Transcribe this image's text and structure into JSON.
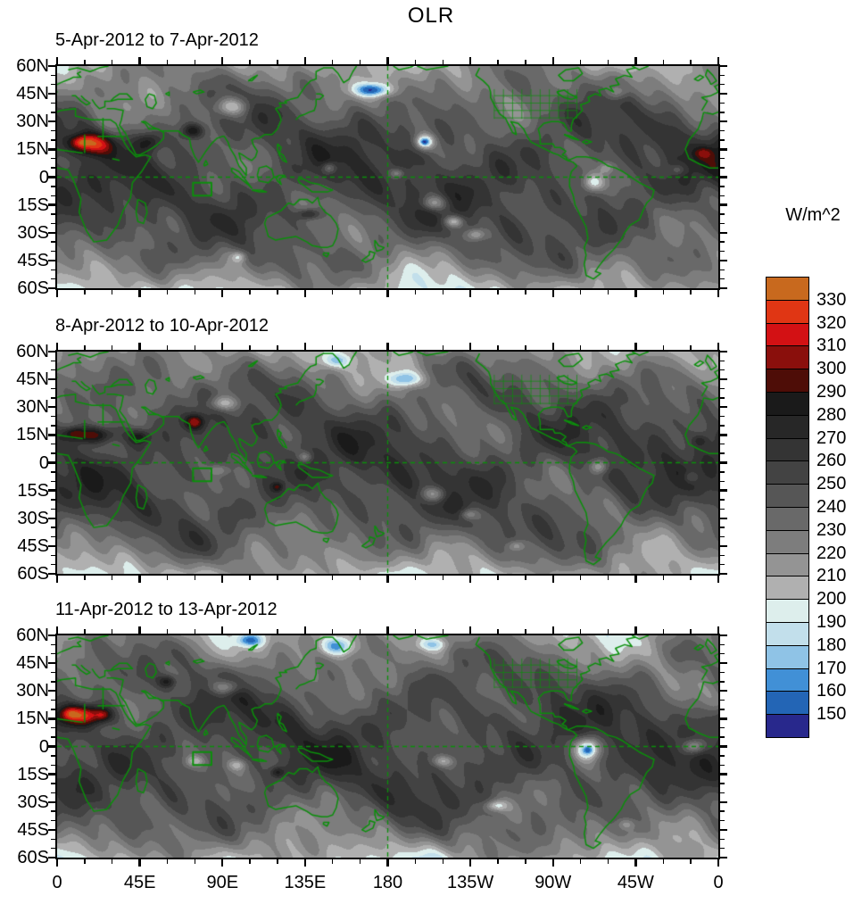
{
  "chart_data": {
    "type": "filled-contour-map",
    "title": "OLR",
    "variable": "Outgoing Longwave Radiation",
    "units": "W/m^2",
    "lon_range_deg_east": [
      0,
      360
    ],
    "lat_range_deg": [
      -60,
      60
    ],
    "grid": "off",
    "axes": {
      "lat_labels": [
        "60N",
        "45N",
        "30N",
        "15N",
        "0",
        "15S",
        "30S",
        "45S",
        "60S"
      ],
      "lat_values": [
        60,
        45,
        30,
        15,
        0,
        -15,
        -30,
        -45,
        -60
      ],
      "lon_labels": [
        "0",
        "45E",
        "90E",
        "135E",
        "180",
        "135W",
        "90W",
        "45W",
        "0"
      ],
      "lon_values": [
        0,
        45,
        90,
        135,
        180,
        225,
        270,
        315,
        360
      ],
      "lat_minor_step_deg": 5,
      "lon_minor_step_deg": 15
    },
    "colorbar": {
      "title": "W/m^2",
      "position": "right",
      "levels": [
        150,
        160,
        170,
        180,
        190,
        200,
        210,
        220,
        230,
        240,
        250,
        260,
        270,
        280,
        290,
        300,
        310,
        320,
        330
      ],
      "labels": [
        "330",
        "320",
        "310",
        "300",
        "290",
        "280",
        "270",
        "260",
        "250",
        "240",
        "230",
        "220",
        "210",
        "200",
        "190",
        "180",
        "170",
        "160",
        "150"
      ],
      "colors_top_to_bottom": [
        "#c8691e",
        "#e03614",
        "#d31114",
        "#8a0f0c",
        "#4e0d07",
        "#1a1a1a",
        "#272727",
        "#343434",
        "#434343",
        "#565656",
        "#696969",
        "#7d7d7d",
        "#949494",
        "#b0b0b0",
        "#ddeeec",
        "#c2dfeb",
        "#8fc3e6",
        "#4190d6",
        "#2365b5",
        "#28288c"
      ]
    },
    "map_overlay": {
      "coastline_color": "#0b8f0b",
      "equator_dashed": true,
      "dateline_dashed": true,
      "region_box_lonlat": [
        74,
        -3,
        84,
        -10
      ]
    },
    "feature_format": [
      "lon_deg_east",
      "lat_deg",
      "amplitude_wm2",
      "radius_lon_deg",
      "radius_lat_deg"
    ],
    "base_field_wm2": 257,
    "panels": [
      {
        "title": "5-Apr-2012 to 7-Apr-2012",
        "seed": 1,
        "features": [
          [
            18,
            18,
            70,
            13,
            6
          ],
          [
            13,
            19,
            28,
            5,
            3
          ],
          [
            50,
            19,
            38,
            7,
            5
          ],
          [
            74,
            25,
            48,
            6,
            4
          ],
          [
            137,
            -20,
            42,
            6,
            3
          ],
          [
            352,
            13,
            25,
            5,
            3
          ],
          [
            95,
            38,
            -50,
            9,
            5
          ],
          [
            172,
            47,
            -65,
            10,
            3.5
          ],
          [
            200,
            19,
            -70,
            5,
            4
          ],
          [
            200,
            19,
            -28,
            2.2,
            1.6
          ],
          [
            148,
            5,
            -40,
            4,
            3
          ],
          [
            185,
            2,
            -32,
            4,
            2.5
          ],
          [
            205,
            -14,
            -45,
            7,
            4
          ],
          [
            216,
            -24,
            -48,
            5,
            3
          ],
          [
            228,
            -31,
            -35,
            5,
            3
          ],
          [
            292,
            -3,
            -52,
            6,
            5
          ],
          [
            299,
            5,
            -28,
            4,
            3
          ],
          [
            99,
            -43,
            -35,
            4,
            3
          ],
          [
            338,
            4,
            -26,
            4,
            3
          ],
          [
            305,
            46,
            -32,
            6,
            4
          ]
        ]
      },
      {
        "title": "8-Apr-2012 to 10-Apr-2012",
        "seed": 2,
        "features": [
          [
            20,
            15,
            65,
            12,
            5
          ],
          [
            9,
            16,
            30,
            5,
            3
          ],
          [
            45,
            14,
            35,
            6,
            4
          ],
          [
            75,
            22,
            52,
            5,
            4
          ],
          [
            350,
            12,
            20,
            4,
            3
          ],
          [
            120,
            -13,
            30,
            3,
            2.5
          ],
          [
            90,
            32,
            -46,
            8,
            4
          ],
          [
            190,
            45,
            -50,
            9,
            4
          ],
          [
            152,
            55,
            -38,
            8,
            4
          ],
          [
            135,
            3,
            -35,
            4,
            3
          ],
          [
            88,
            -4,
            -28,
            5,
            3
          ],
          [
            205,
            -17,
            -45,
            7,
            4
          ],
          [
            224,
            -28,
            -35,
            5,
            3
          ],
          [
            295,
            -2,
            -45,
            5,
            4
          ],
          [
            250,
            -45,
            -32,
            5,
            3
          ],
          [
            345,
            -8,
            -24,
            4,
            3
          ]
        ]
      },
      {
        "title": "11-Apr-2012 to 13-Apr-2012",
        "seed": 3,
        "features": [
          [
            15,
            17,
            75,
            14,
            5.5
          ],
          [
            25,
            17,
            26,
            4,
            3
          ],
          [
            7,
            18,
            22,
            4,
            3
          ],
          [
            60,
            35,
            40,
            5,
            3.5
          ],
          [
            120,
            -14,
            35,
            4,
            3
          ],
          [
            92,
            32,
            -46,
            8,
            4
          ],
          [
            105,
            57,
            -40,
            7,
            3
          ],
          [
            152,
            54,
            -55,
            9,
            5
          ],
          [
            205,
            55,
            -30,
            8,
            3
          ],
          [
            289,
            -1,
            -70,
            7,
            6
          ],
          [
            289,
            -2,
            -26,
            2.5,
            2
          ],
          [
            347,
            0,
            -50,
            6,
            4
          ],
          [
            239,
            -32,
            -42,
            6,
            3
          ],
          [
            210,
            -8,
            -35,
            6,
            3
          ],
          [
            75,
            -8,
            -35,
            5,
            3
          ],
          [
            98,
            -10,
            -30,
            5,
            3
          ],
          [
            310,
            -42,
            -26,
            5,
            3
          ]
        ]
      }
    ]
  }
}
